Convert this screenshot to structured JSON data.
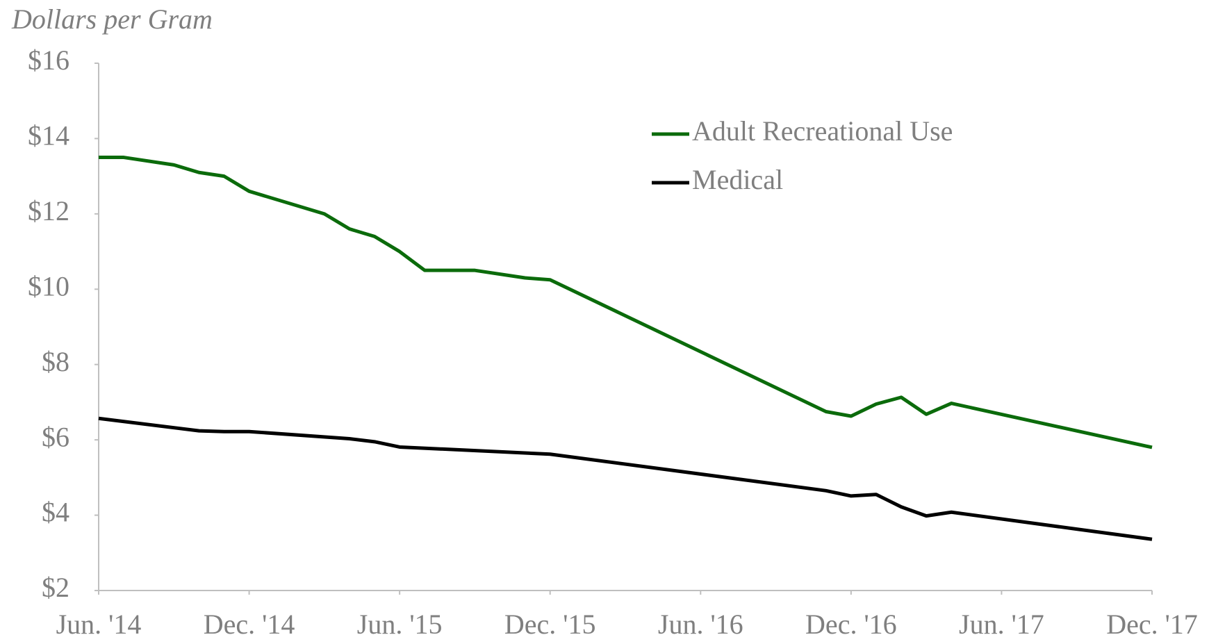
{
  "chart_data": {
    "type": "line",
    "title": "Dollars per Gram",
    "series": [
      {
        "name": "Adult Recreational Use",
        "color": "#0b6b0b",
        "x": [
          "2014-06",
          "2014-07",
          "2014-09",
          "2014-10",
          "2014-11",
          "2014-12",
          "2015-03",
          "2015-04",
          "2015-05",
          "2015-06",
          "2015-07",
          "2015-08",
          "2015-09",
          "2015-11",
          "2015-12",
          "2016-11",
          "2016-12",
          "2017-01",
          "2017-02",
          "2017-03",
          "2017-04",
          "2017-12"
        ],
        "values": [
          13.5,
          13.5,
          13.3,
          13.1,
          13.0,
          12.6,
          12.0,
          11.6,
          11.4,
          11.0,
          10.5,
          10.5,
          10.5,
          10.3,
          10.25,
          6.75,
          6.63,
          6.95,
          7.13,
          6.68,
          6.97,
          5.8
        ]
      },
      {
        "name": "Medical",
        "color": "#000000",
        "x": [
          "2014-06",
          "2014-10",
          "2014-11",
          "2014-12",
          "2015-04",
          "2015-05",
          "2015-06",
          "2015-12",
          "2016-11",
          "2016-12",
          "2017-01",
          "2017-02",
          "2017-03",
          "2017-04",
          "2017-12"
        ],
        "values": [
          6.57,
          6.24,
          6.22,
          6.22,
          6.03,
          5.95,
          5.81,
          5.62,
          4.65,
          4.51,
          4.55,
          4.22,
          3.98,
          4.08,
          3.36
        ]
      }
    ],
    "xticks": [
      {
        "value": "2014-06",
        "label": "Jun. '14"
      },
      {
        "value": "2014-12",
        "label": "Dec. '14"
      },
      {
        "value": "2015-06",
        "label": "Jun. '15"
      },
      {
        "value": "2015-12",
        "label": "Dec. '15"
      },
      {
        "value": "2016-06",
        "label": "Jun. '16"
      },
      {
        "value": "2016-12",
        "label": "Dec. '16"
      },
      {
        "value": "2017-06",
        "label": "Jun. '17"
      },
      {
        "value": "2017-12",
        "label": "Dec. '17"
      }
    ],
    "xlim": [
      "2014-06",
      "2017-12"
    ],
    "ylim": [
      2,
      16
    ],
    "yticks": [
      {
        "value": 2,
        "label": "$2"
      },
      {
        "value": 4,
        "label": "$4"
      },
      {
        "value": 6,
        "label": "$6"
      },
      {
        "value": 8,
        "label": "$8"
      },
      {
        "value": 10,
        "label": "$10"
      },
      {
        "value": 12,
        "label": "$12"
      },
      {
        "value": 14,
        "label": "$14"
      },
      {
        "value": 16,
        "label": "$16"
      }
    ],
    "legend": "top-right"
  }
}
